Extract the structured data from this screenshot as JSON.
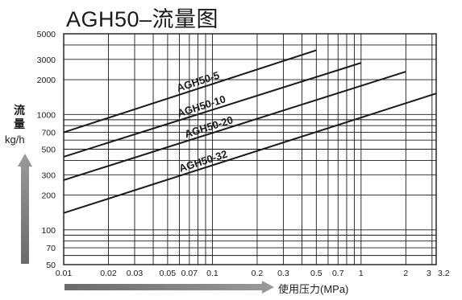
{
  "chart_data": {
    "type": "line",
    "title": "AGH50–流量图",
    "ylabel": {
      "line1": "流",
      "line2": "量",
      "unit": "kg/h"
    },
    "xlabel": "使用压力(MPa)",
    "x_scale": "log",
    "y_scale": "log",
    "xlim": [
      0.01,
      3.2
    ],
    "ylim": [
      50,
      5000
    ],
    "grid": true,
    "x_ticks": [
      {
        "value": 0.01,
        "label": "0.01"
      },
      {
        "value": 0.02,
        "label": "0.02"
      },
      {
        "value": 0.03,
        "label": "0.03"
      },
      {
        "value": 0.05,
        "label": "0.05"
      },
      {
        "value": 0.07,
        "label": "0.07"
      },
      {
        "value": 0.1,
        "label": "0.1"
      },
      {
        "value": 0.2,
        "label": "0.2"
      },
      {
        "value": 0.3,
        "label": "0.3"
      },
      {
        "value": 0.5,
        "label": "0.5"
      },
      {
        "value": 0.7,
        "label": "0.7"
      },
      {
        "value": 1,
        "label": "1"
      },
      {
        "value": 2,
        "label": "2"
      },
      {
        "value": 3,
        "label": "3"
      },
      {
        "value": 3.2,
        "label": "3.2"
      }
    ],
    "y_ticks": [
      {
        "value": 50,
        "label": "50"
      },
      {
        "value": 70,
        "label": "70"
      },
      {
        "value": 100,
        "label": "100"
      },
      {
        "value": 200,
        "label": "200"
      },
      {
        "value": 300,
        "label": "300"
      },
      {
        "value": 500,
        "label": "500"
      },
      {
        "value": 700,
        "label": "700"
      },
      {
        "value": 1000,
        "label": "1000"
      },
      {
        "value": 2000,
        "label": "2000"
      },
      {
        "value": 3000,
        "label": "3000"
      },
      {
        "value": 5000,
        "label": "5000"
      }
    ],
    "x_grid": [
      0.01,
      0.02,
      0.03,
      0.04,
      0.05,
      0.06,
      0.07,
      0.08,
      0.09,
      0.1,
      0.2,
      0.3,
      0.4,
      0.5,
      0.6,
      0.7,
      0.8,
      0.9,
      1,
      2,
      3,
      3.2
    ],
    "y_grid": [
      50,
      60,
      70,
      80,
      90,
      100,
      200,
      300,
      400,
      500,
      600,
      700,
      800,
      900,
      1000,
      2000,
      3000,
      4000,
      5000
    ],
    "series": [
      {
        "name": "AGH50-5",
        "x": [
          0.01,
          0.5
        ],
        "y": [
          700,
          3600
        ]
      },
      {
        "name": "AGH50-10",
        "x": [
          0.01,
          1.0
        ],
        "y": [
          430,
          2800
        ]
      },
      {
        "name": "AGH50-20",
        "x": [
          0.01,
          2.0
        ],
        "y": [
          270,
          2350
        ]
      },
      {
        "name": "AGH50-32",
        "x": [
          0.01,
          3.2
        ],
        "y": [
          140,
          1520
        ]
      }
    ]
  }
}
